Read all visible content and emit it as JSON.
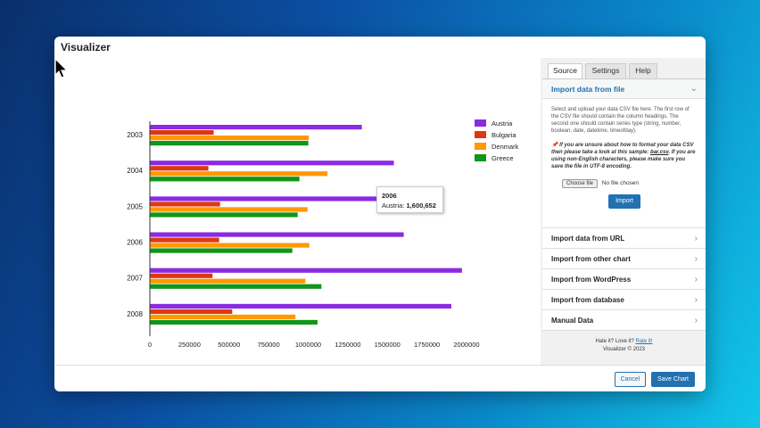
{
  "window": {
    "title": "Visualizer"
  },
  "tabs": [
    {
      "label": "Source",
      "active": true
    },
    {
      "label": "Settings",
      "active": false
    },
    {
      "label": "Help",
      "active": false
    }
  ],
  "import_file": {
    "title": "Import data from file",
    "help_text": "Select and upload your data CSV file here. The first row of the CSV file should contain the column headings. The second one should contain series type (string, number, boolean, date, datetime, timeofday).",
    "note_prefix": "If you are unsure about how to format your data CSV then please take a look at this sample: ",
    "note_link": "bar.csv",
    "note_suffix": ". If you are using non-English characters, please make sure you save the file in UTF-8 encoding.",
    "choose_file_label": "Choose file",
    "no_file_text": "No file chosen",
    "import_label": "Import"
  },
  "accordion": [
    "Import data from URL",
    "Import from other chart",
    "Import from WordPress",
    "Import from database",
    "Manual Data"
  ],
  "footer": {
    "rate_prefix": "Hate it? Love it? ",
    "rate_link": "Rate it!",
    "copyright": "Visualizer © 2023",
    "cancel_label": "Cancel",
    "save_label": "Save Chart"
  },
  "tooltip": {
    "year": "2006",
    "series": "Austria: ",
    "value": "1,600,652"
  },
  "chart_data": {
    "type": "bar",
    "orientation": "horizontal",
    "categories": [
      "2003",
      "2004",
      "2005",
      "2006",
      "2007",
      "2008"
    ],
    "series": [
      {
        "name": "Austria",
        "color": "#8a2be2",
        "values": [
          1336060,
          1538156,
          1576579,
          1600652,
          1968113,
          1901067
        ]
      },
      {
        "name": "Bulgaria",
        "color": "#dc3912",
        "values": [
          400361,
          366849,
          440514,
          434552,
          393032,
          517206
        ]
      },
      {
        "name": "Denmark",
        "color": "#ff9900",
        "values": [
          1001582,
          1119450,
          993360,
          1004163,
          979198,
          916965
        ]
      },
      {
        "name": "Greece",
        "color": "#109618",
        "values": [
          997974,
          941795,
          930593,
          897127,
          1080887,
          1056036
        ]
      }
    ],
    "xticks": [
      "0",
      "250000",
      "500000",
      "750000",
      "1000000",
      "1250000",
      "1500000",
      "1750000",
      "2000000"
    ],
    "xlim": [
      0,
      2000000
    ],
    "legend": "right"
  }
}
